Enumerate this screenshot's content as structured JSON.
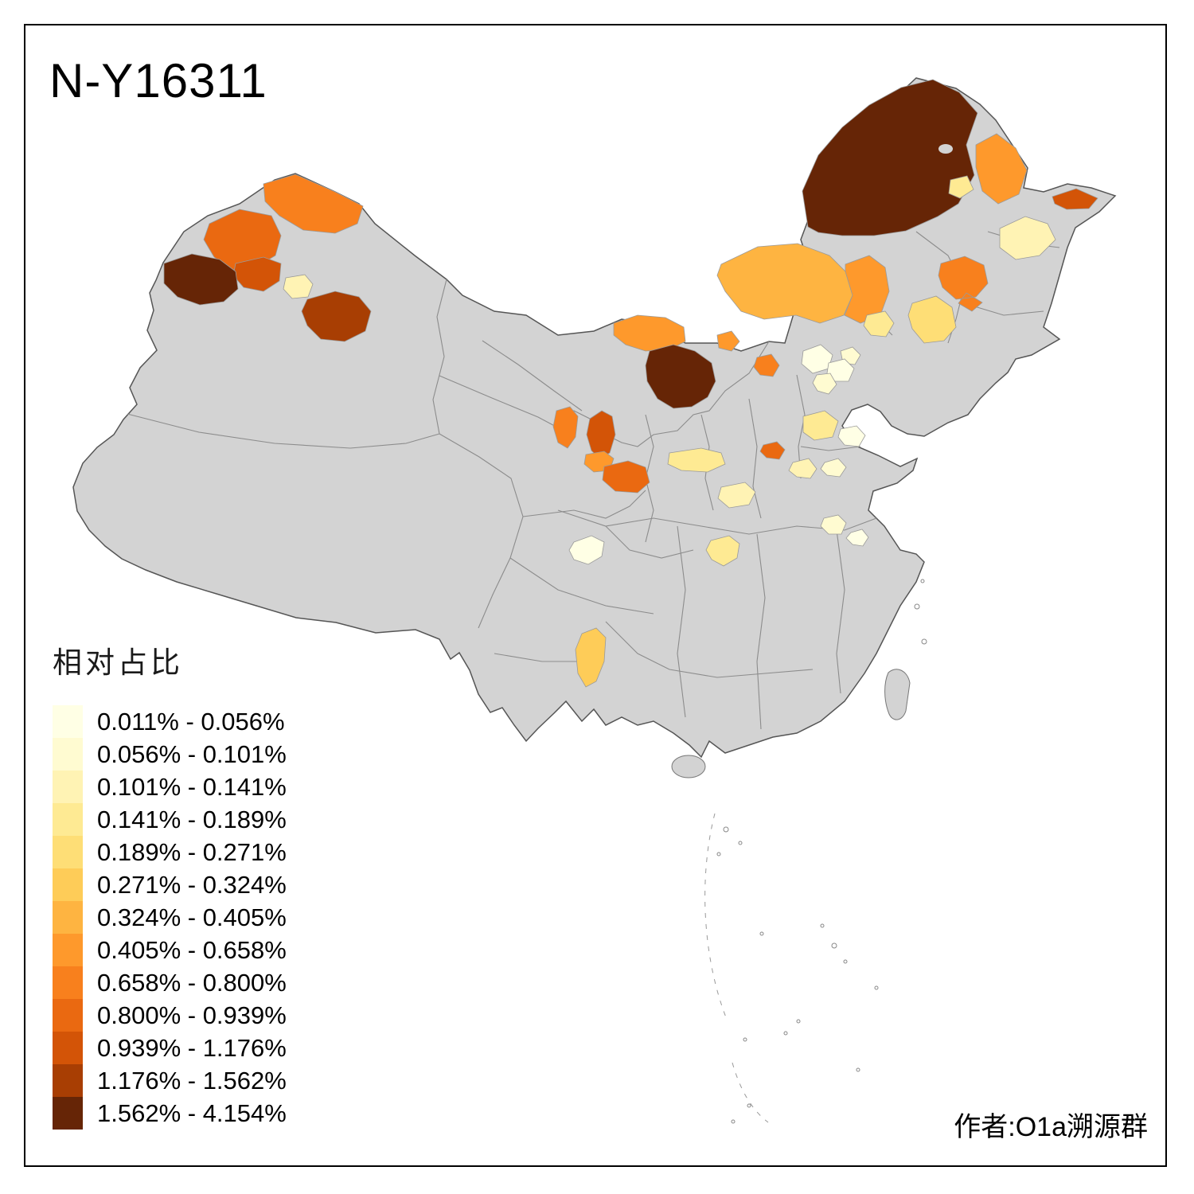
{
  "title": "N-Y16311",
  "attribution": "作者:O1a溯源群",
  "legend": {
    "title": "相对占比",
    "classes": [
      {
        "label": "0.011% - 0.056%",
        "color": "#FFFFE5"
      },
      {
        "label": "0.056% - 0.101%",
        "color": "#FFFBD1"
      },
      {
        "label": "0.101% - 0.141%",
        "color": "#FFF3B4"
      },
      {
        "label": "0.141% - 0.189%",
        "color": "#FEEA93"
      },
      {
        "label": "0.189% - 0.271%",
        "color": "#FEDE76"
      },
      {
        "label": "0.271% - 0.324%",
        "color": "#FECC58"
      },
      {
        "label": "0.324% - 0.405%",
        "color": "#FEB441"
      },
      {
        "label": "0.405% - 0.658%",
        "color": "#FE992C"
      },
      {
        "label": "0.658% - 0.800%",
        "color": "#F8801D"
      },
      {
        "label": "0.800% - 0.939%",
        "color": "#EA6911"
      },
      {
        "label": "0.939% - 1.176%",
        "color": "#D35407"
      },
      {
        "label": "1.176% - 1.562%",
        "color": "#A83E03"
      },
      {
        "label": "1.562% - 4.154%",
        "color": "#662506"
      }
    ]
  },
  "map": {
    "base_fill": "#D3D3D3",
    "boundary_color": "#555555",
    "background": "#FFFFFF",
    "regions": [
      {
        "id": "region-01",
        "color": "#662506"
      },
      {
        "id": "region-02",
        "color": "#FE992C"
      },
      {
        "id": "region-03",
        "color": "#D35407"
      },
      {
        "id": "region-04",
        "color": "#FFF3B4"
      },
      {
        "id": "region-05",
        "color": "#FEEA93"
      },
      {
        "id": "region-06",
        "color": "#FEB441"
      },
      {
        "id": "region-07",
        "color": "#FE992C"
      },
      {
        "id": "region-08",
        "color": "#F8801D"
      },
      {
        "id": "region-09",
        "color": "#FEDE76"
      },
      {
        "id": "region-10",
        "color": "#FEEA93"
      },
      {
        "id": "region-11",
        "color": "#FE992C"
      },
      {
        "id": "region-12",
        "color": "#662506"
      },
      {
        "id": "region-13",
        "color": "#FE992C"
      },
      {
        "id": "region-14",
        "color": "#F8801D"
      },
      {
        "id": "region-15",
        "color": "#FFFFE5"
      },
      {
        "id": "region-16",
        "color": "#FFFBD1"
      },
      {
        "id": "region-17",
        "color": "#FFFFE5"
      },
      {
        "id": "region-18",
        "color": "#FFFBD1"
      },
      {
        "id": "region-19",
        "color": "#FEEA93"
      },
      {
        "id": "region-20",
        "color": "#FFFFE5"
      },
      {
        "id": "region-21",
        "color": "#EA6911"
      },
      {
        "id": "region-22",
        "color": "#FEEA93"
      },
      {
        "id": "region-23",
        "color": "#FFFBD1"
      },
      {
        "id": "region-24",
        "color": "#FFF3B4"
      },
      {
        "id": "region-25",
        "color": "#FFF3B4"
      },
      {
        "id": "region-26",
        "color": "#FFFBD1"
      },
      {
        "id": "region-27",
        "color": "#FFFFE5"
      },
      {
        "id": "region-28",
        "color": "#FEEA93"
      },
      {
        "id": "region-29",
        "color": "#FFFFE5"
      },
      {
        "id": "region-30",
        "color": "#FECC58"
      },
      {
        "id": "region-31",
        "color": "#EA6911"
      },
      {
        "id": "region-32",
        "color": "#F8801D"
      },
      {
        "id": "region-33",
        "color": "#D35407"
      },
      {
        "id": "region-34",
        "color": "#662506"
      },
      {
        "id": "region-35",
        "color": "#FFF3B4"
      },
      {
        "id": "region-36",
        "color": "#A83E03"
      },
      {
        "id": "region-37",
        "color": "#F8801D"
      },
      {
        "id": "region-38",
        "color": "#D35407"
      },
      {
        "id": "region-39",
        "color": "#FE992C"
      },
      {
        "id": "region-40",
        "color": "#EA6911"
      }
    ]
  }
}
